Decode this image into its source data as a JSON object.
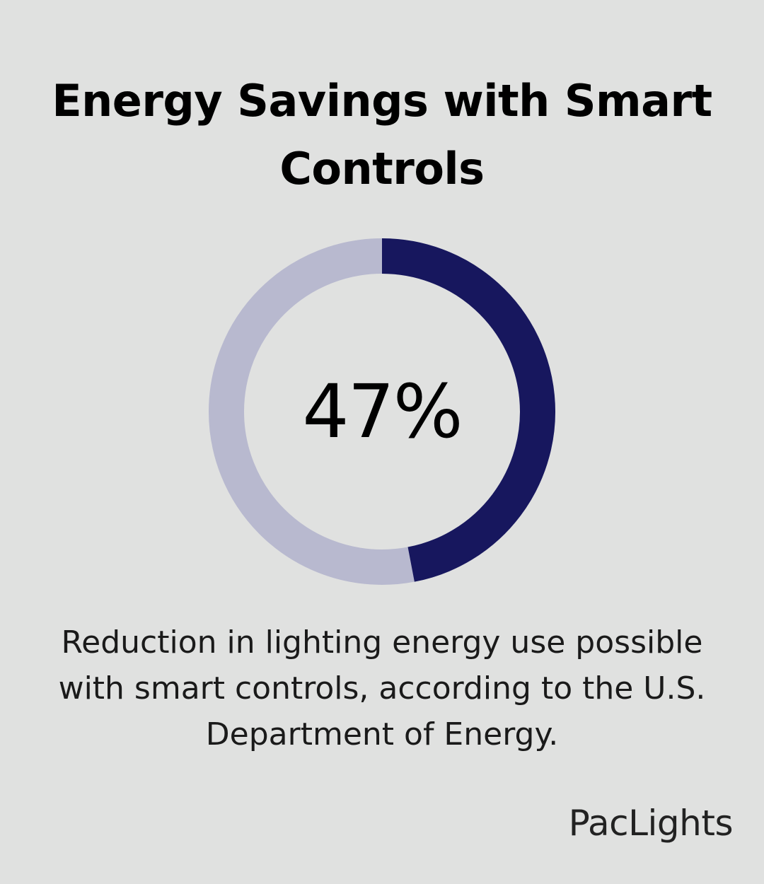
{
  "title": "Energy Savings with Smart Controls",
  "chart_data": {
    "type": "pie",
    "subtype": "donut",
    "value": 47,
    "max": 100,
    "label": "47%",
    "description": "Reduction in lighting energy use possible with smart controls, according to the U.S. Department of Energy.",
    "colors": {
      "filled": "#17175e",
      "remaining": "#b8b9cf"
    }
  },
  "brand": "PacLights"
}
